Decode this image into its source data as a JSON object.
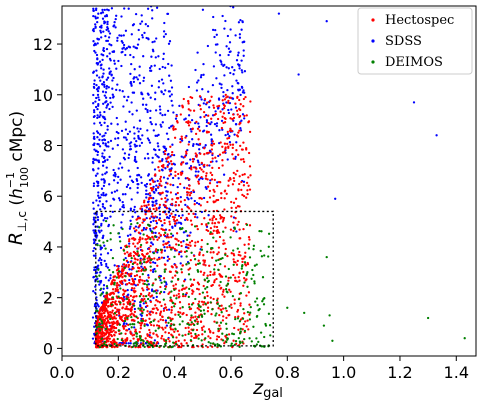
{
  "chart_data": {
    "type": "scatter",
    "xlabel_main": "z",
    "xlabel_sub": "gal",
    "ylabel": {
      "R": "R",
      "sub": "⊥,c",
      "open": " (",
      "h": "h",
      "h_sup": "−1",
      "h_sub": "100",
      "unit": " cMpc)"
    },
    "xlim": [
      0.0,
      1.47
    ],
    "ylim": [
      -0.3,
      13.5
    ],
    "x_ticks": [
      0.0,
      0.2,
      0.4,
      0.6,
      0.8,
      1.0,
      1.2,
      1.4
    ],
    "x_tick_labels": [
      "0.0",
      "0.2",
      "0.4",
      "0.6",
      "0.8",
      "1.0",
      "1.2",
      "1.4"
    ],
    "y_ticks": [
      0,
      2,
      4,
      6,
      8,
      10,
      12
    ],
    "y_tick_labels": [
      "0",
      "2",
      "4",
      "6",
      "8",
      "10",
      "12"
    ],
    "legend_position": "top-right",
    "selection_box": {
      "x0": 0.12,
      "x1": 0.75,
      "y0": 0.1,
      "y1": 5.4
    },
    "series": [
      {
        "name": "Hectospec",
        "color": "#ff0000"
      },
      {
        "name": "SDSS",
        "color": "#0000ff"
      },
      {
        "name": "DEIMOS",
        "color": "#008000"
      }
    ],
    "outlier_points": {
      "SDSS": [
        [
          0.94,
          12.9
        ],
        [
          0.77,
          13.2
        ],
        [
          0.84,
          10.8
        ],
        [
          1.25,
          9.7
        ],
        [
          1.33,
          8.4
        ],
        [
          0.97,
          5.9
        ]
      ],
      "DEIMOS": [
        [
          0.8,
          1.6
        ],
        [
          0.86,
          1.4
        ],
        [
          0.94,
          3.6
        ],
        [
          0.95,
          1.3
        ],
        [
          0.93,
          0.9
        ],
        [
          1.3,
          1.2
        ],
        [
          1.43,
          0.4
        ],
        [
          0.96,
          0.3
        ]
      ]
    }
  }
}
